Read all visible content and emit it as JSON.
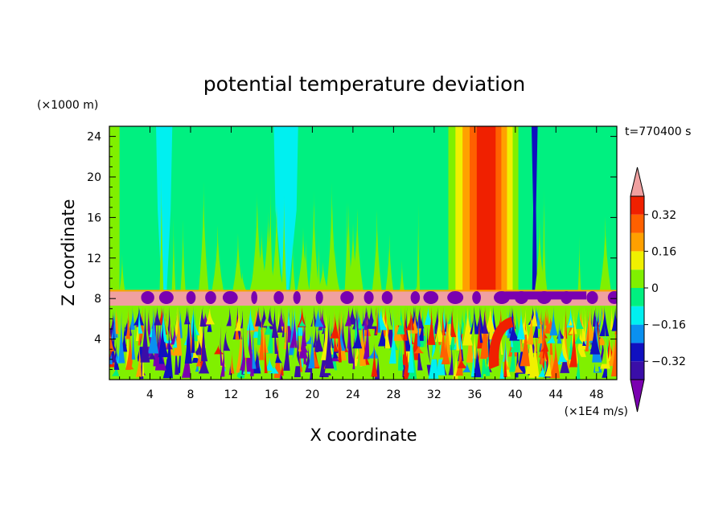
{
  "chart_data": {
    "type": "heatmap",
    "title": "potential temperature deviation",
    "xlabel": "X coordinate",
    "ylabel": "Z coordinate",
    "x_unit": "(×1E4 m/s)",
    "y_unit": "(×1000 m)",
    "time_label": "t=770400 s",
    "xlim": [
      0,
      50
    ],
    "ylim": [
      0,
      25
    ],
    "x_ticks": [
      4,
      8,
      12,
      16,
      20,
      24,
      28,
      32,
      36,
      40,
      44,
      48
    ],
    "x_tick_labels": [
      "4",
      "8",
      "12",
      "16",
      "20",
      "24",
      "28",
      "32",
      "36",
      "40",
      "44",
      "48"
    ],
    "y_ticks": [
      4,
      8,
      12,
      16,
      20,
      24
    ],
    "y_tick_labels": [
      "4",
      "8",
      "12",
      "16",
      "20",
      "24"
    ],
    "colorbar": {
      "levels": [
        -0.4,
        -0.32,
        -0.24,
        -0.16,
        -0.08,
        0,
        0.08,
        0.16,
        0.24,
        0.32,
        0.4
      ],
      "tick_values": [
        0.32,
        0.16,
        0,
        -0.16,
        -0.32
      ],
      "tick_labels": [
        "0.32",
        "0.16",
        "0",
        "−0.16",
        "−0.32"
      ],
      "colors": [
        "#3a0ea8",
        "#1010c0",
        "#0a90f0",
        "#00f0f0",
        "#00f080",
        "#80f000",
        "#f0f000",
        "#ffa000",
        "#ff6000",
        "#f02000"
      ],
      "under_color": "#7a00b0",
      "over_color": "#f0a0a0"
    },
    "regions": [
      {
        "name": "upper-layer-background",
        "z_range": [
          8.5,
          25
        ],
        "value": -0.04,
        "color": "#00f080"
      },
      {
        "name": "inversion-band",
        "z_range": [
          7.3,
          8.7
        ],
        "value": 0.45,
        "color": "#f0a0a0"
      },
      {
        "name": "turbulent-lower-layer",
        "z_range": [
          0,
          7.3
        ],
        "value_range": [
          -0.4,
          0.4
        ]
      }
    ],
    "features": [
      {
        "name": "cyan-plume",
        "x_range": [
          4.6,
          6.2
        ],
        "z_range": [
          8.5,
          25
        ],
        "value": -0.12
      },
      {
        "name": "cyan-plume",
        "x_range": [
          16.2,
          18.6
        ],
        "z_range": [
          8.5,
          25
        ],
        "value": -0.12
      },
      {
        "name": "warm-column",
        "x_range": [
          33,
          40
        ],
        "z_range": [
          8.5,
          25
        ],
        "value_range": [
          0.08,
          0.32
        ]
      },
      {
        "name": "cold-column",
        "x_range": [
          41.6,
          42.2
        ],
        "z_range": [
          8.8,
          25
        ],
        "value": -0.3
      }
    ]
  }
}
